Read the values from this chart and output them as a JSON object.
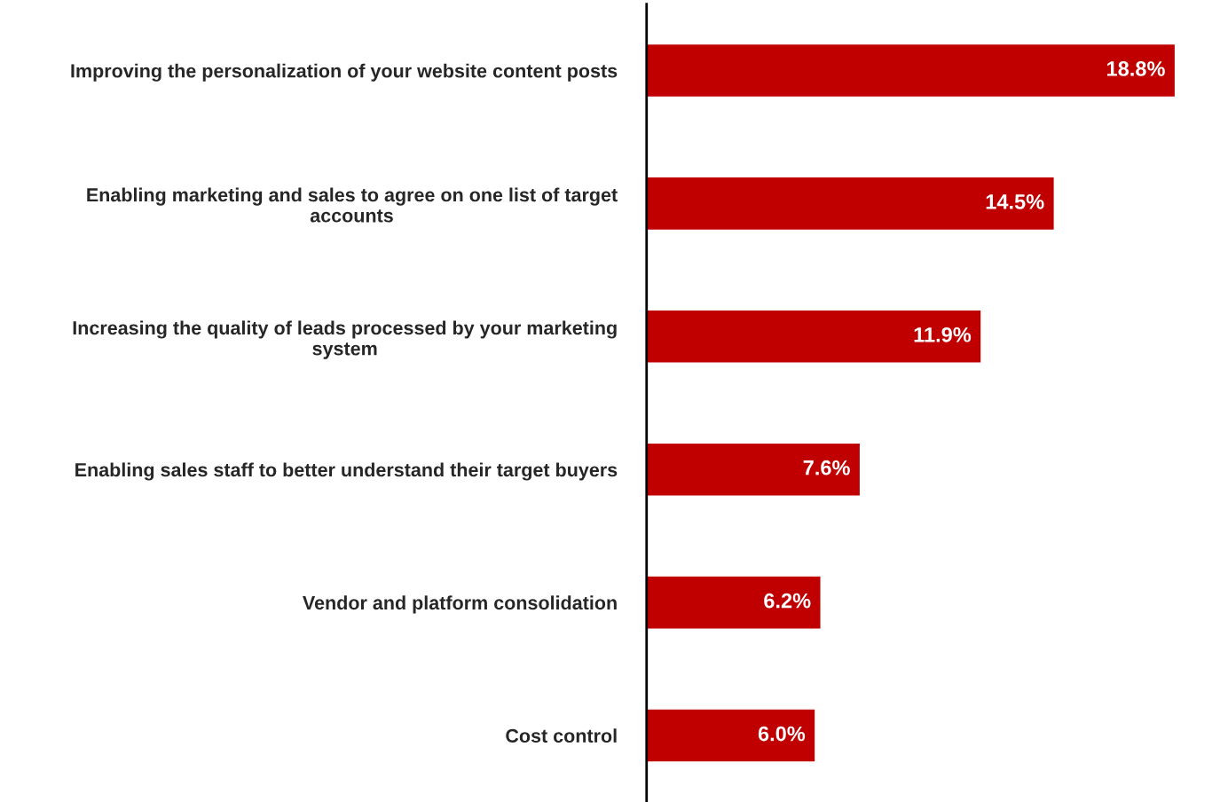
{
  "chart_data": {
    "type": "bar",
    "orientation": "horizontal",
    "categories": [
      "Improving the personalization of your website content posts",
      "Enabling marketing and sales to agree on one list of target\naccounts",
      "Increasing the quality of leads processed by your marketing\nsystem",
      "Enabling sales staff to better understand their target buyers",
      "Vendor and platform consolidation",
      "Cost control"
    ],
    "values": [
      18.8,
      14.5,
      11.9,
      7.6,
      6.2,
      6.0
    ],
    "value_labels": [
      "18.8%",
      "14.5%",
      "11.9%",
      "7.6%",
      "6.2%",
      "6.0%"
    ],
    "color": "#c00000",
    "tick_labels": "y",
    "grid": false,
    "legend": false
  }
}
